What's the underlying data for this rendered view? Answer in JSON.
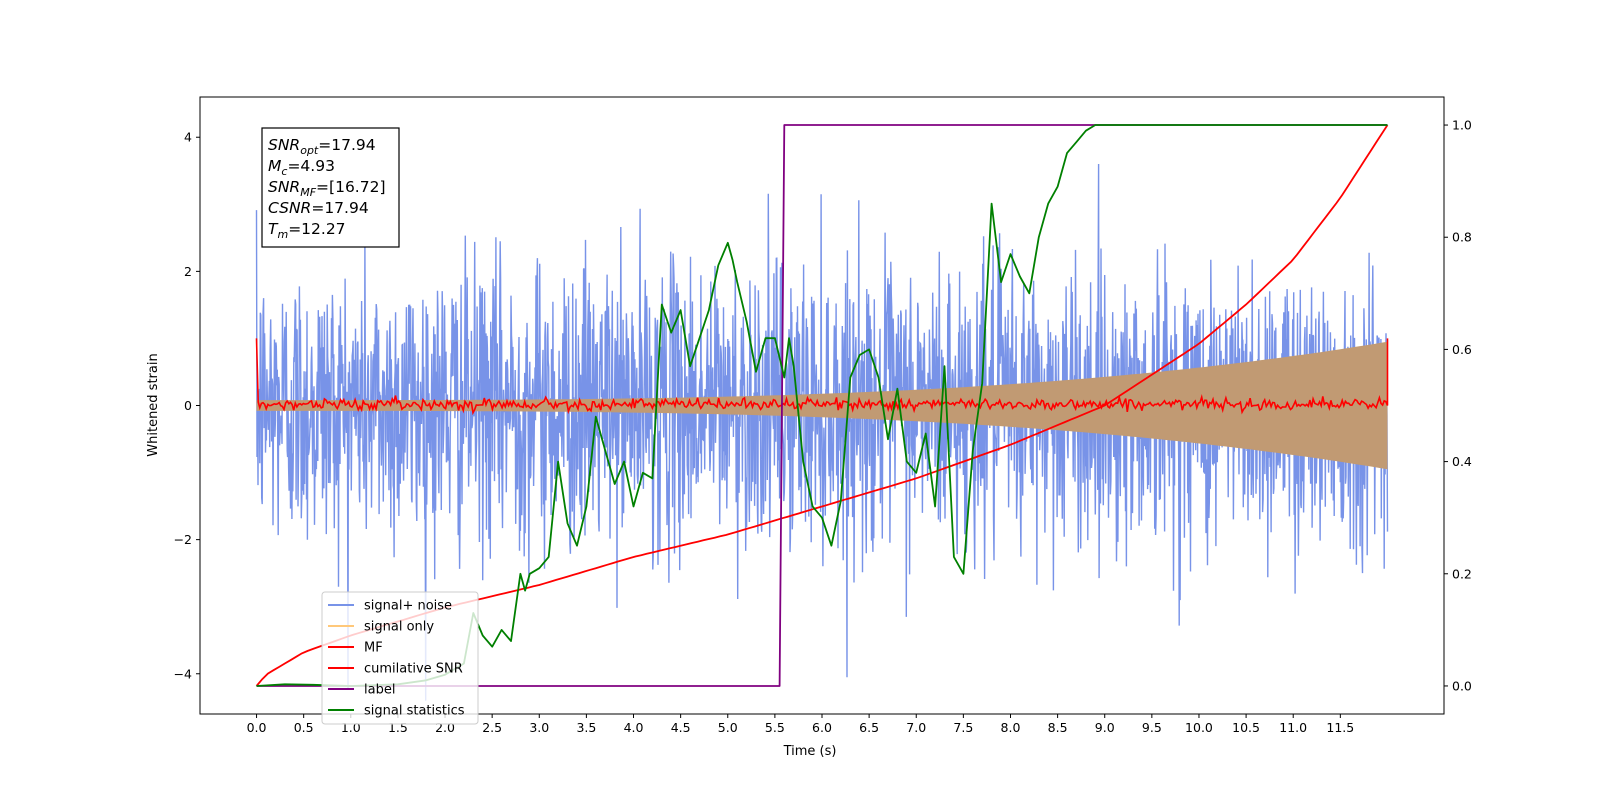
{
  "chart_data": {
    "type": "line",
    "xlabel": "Time (s)",
    "ylabel": "Whitened strain",
    "x_ticks": [
      "0.0",
      "0.5",
      "1.0",
      "1.5",
      "2.0",
      "2.5",
      "3.0",
      "3.5",
      "4.0",
      "4.5",
      "5.0",
      "5.5",
      "6.0",
      "6.5",
      "7.0",
      "7.5",
      "8.0",
      "8.5",
      "9.0",
      "9.5",
      "10.0",
      "10.5",
      "11.0",
      "11.5"
    ],
    "y_ticks": [
      "−4",
      "−2",
      "0",
      "2",
      "4"
    ],
    "y2_ticks": [
      "0.0",
      "0.2",
      "0.4",
      "0.6",
      "0.8",
      "1.0"
    ],
    "xlim": [
      -0.6,
      12.6
    ],
    "ylim": [
      -4.6,
      4.6
    ],
    "y2lim": [
      -0.05,
      1.05
    ],
    "legend_position": "lower-left",
    "annotation": {
      "lines": [
        {
          "base": "SNR",
          "sub": "opt",
          "value": "=17.94"
        },
        {
          "base": "M",
          "sub": "c",
          "value": "=4.93"
        },
        {
          "base": "SNR",
          "sub": "MF",
          "value": "=[16.72]"
        },
        {
          "base": "CSNR",
          "sub": "",
          "value": "=17.94"
        },
        {
          "base": "T",
          "sub": "m",
          "value": "=12.27"
        }
      ]
    },
    "series": [
      {
        "name": "signal+ noise",
        "color": "#7893e8",
        "axis": "left",
        "kind": "noise",
        "std": 1.05,
        "x_range": [
          0,
          12
        ]
      },
      {
        "name": "signal only",
        "color": "#ffc87a",
        "axis": "left",
        "kind": "chirp_envelope",
        "amp_start": 0.08,
        "amp_end": 0.95,
        "x_range": [
          0,
          12
        ]
      },
      {
        "name": "MF",
        "color": "#ff0000",
        "axis": "left",
        "kind": "noise_small",
        "std": 0.04,
        "edge_value": 1.0,
        "x_range": [
          0,
          12
        ]
      },
      {
        "name": "cumilative SNR",
        "color": "#ff0000",
        "axis": "right",
        "x": [
          0,
          0.1,
          0.5,
          1,
          2,
          3,
          4,
          5,
          6,
          7,
          8,
          9,
          10,
          10.5,
          11,
          11.5,
          12
        ],
        "y": [
          0.0,
          0.02,
          0.06,
          0.09,
          0.14,
          0.18,
          0.23,
          0.27,
          0.32,
          0.37,
          0.43,
          0.5,
          0.61,
          0.68,
          0.76,
          0.87,
          1.0
        ]
      },
      {
        "name": "label",
        "color": "#800080",
        "axis": "right",
        "x": [
          0,
          5.55,
          5.6,
          12
        ],
        "y": [
          0.0,
          0.0,
          1.0,
          1.0
        ]
      },
      {
        "name": "signal statistics",
        "color": "#008000",
        "axis": "right",
        "x": [
          0,
          0.3,
          0.6,
          1.0,
          1.5,
          1.8,
          2.0,
          2.2,
          2.3,
          2.4,
          2.5,
          2.6,
          2.7,
          2.8,
          2.85,
          2.9,
          3.0,
          3.1,
          3.2,
          3.3,
          3.4,
          3.5,
          3.6,
          3.7,
          3.8,
          3.9,
          4.0,
          4.1,
          4.2,
          4.3,
          4.4,
          4.5,
          4.6,
          4.7,
          4.8,
          4.9,
          5.0,
          5.05,
          5.1,
          5.2,
          5.3,
          5.4,
          5.5,
          5.6,
          5.65,
          5.7,
          5.8,
          5.9,
          6.0,
          6.1,
          6.2,
          6.3,
          6.4,
          6.5,
          6.6,
          6.7,
          6.8,
          6.9,
          7.0,
          7.1,
          7.2,
          7.3,
          7.4,
          7.5,
          7.6,
          7.7,
          7.8,
          7.9,
          8.0,
          8.1,
          8.2,
          8.3,
          8.4,
          8.5,
          8.6,
          8.7,
          8.8,
          8.9,
          9.0,
          9.5,
          10.0,
          10.5,
          11.0,
          11.5,
          12.0
        ],
        "y": [
          0.0,
          0.003,
          0.002,
          0.0,
          0.003,
          0.01,
          0.02,
          0.04,
          0.13,
          0.09,
          0.07,
          0.1,
          0.08,
          0.2,
          0.17,
          0.2,
          0.21,
          0.23,
          0.4,
          0.29,
          0.25,
          0.32,
          0.48,
          0.42,
          0.36,
          0.4,
          0.32,
          0.38,
          0.37,
          0.68,
          0.63,
          0.67,
          0.57,
          0.62,
          0.67,
          0.75,
          0.79,
          0.76,
          0.72,
          0.65,
          0.56,
          0.62,
          0.62,
          0.55,
          0.62,
          0.57,
          0.4,
          0.32,
          0.3,
          0.25,
          0.33,
          0.55,
          0.59,
          0.6,
          0.55,
          0.44,
          0.53,
          0.4,
          0.38,
          0.45,
          0.32,
          0.57,
          0.23,
          0.2,
          0.42,
          0.54,
          0.86,
          0.72,
          0.77,
          0.73,
          0.7,
          0.8,
          0.86,
          0.89,
          0.95,
          0.97,
          0.99,
          1.0,
          1.0,
          1.0,
          1.0,
          1.0,
          1.0,
          1.0,
          1.0
        ]
      }
    ]
  }
}
